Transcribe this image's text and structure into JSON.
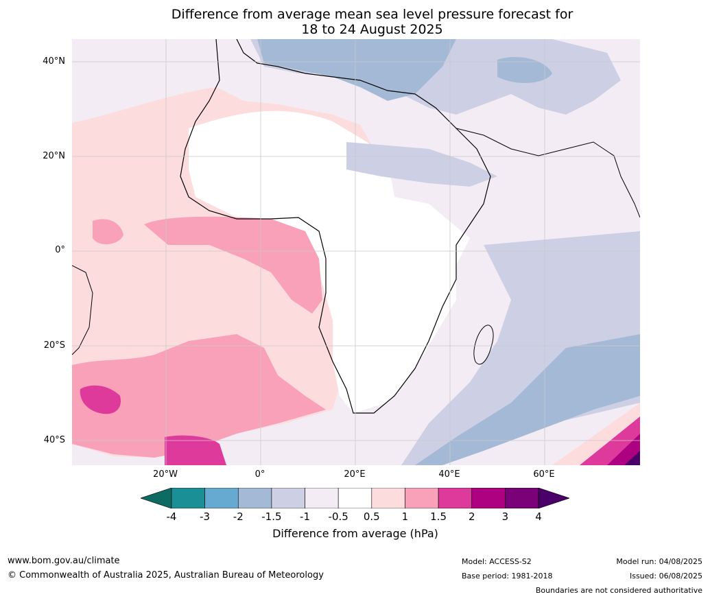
{
  "title_line1": "Difference from average mean sea level pressure forecast for",
  "title_line2": "18 to 24 August 2025",
  "lat_labels": [
    "40°N",
    "20°N",
    "0°",
    "20°S",
    "40°S"
  ],
  "lon_labels": [
    "20°W",
    "0°",
    "20°E",
    "40°E",
    "60°E"
  ],
  "colorbar": {
    "ticks": [
      "-4",
      "-3",
      "-2",
      "-1.5",
      "-1",
      "-0.5",
      "0.5",
      "1",
      "1.5",
      "2",
      "3",
      "4"
    ],
    "colors": [
      "#1b8f96",
      "#67aad1",
      "#a4b9d6",
      "#cdcfe4",
      "#f3ecf4",
      "#ffffff",
      "#fddcde",
      "#f9a1b8",
      "#de3a9b",
      "#ae0181",
      "#7a0177"
    ],
    "under_color": "#0d6b63",
    "over_color": "#4a0068",
    "label": "Difference from average (hPa)"
  },
  "footer": {
    "url": "www.bom.gov.au/climate",
    "copyright": "© Commonwealth of Australia 2025, Australian Bureau of Meteorology",
    "model": "Model: ACCESS-S2",
    "base_period": "Base period: 1981-2018",
    "model_run": "Model run: 04/08/2025",
    "issued": "Issued: 06/08/2025",
    "disclaimer": "Boundaries are not considered authoritative"
  }
}
